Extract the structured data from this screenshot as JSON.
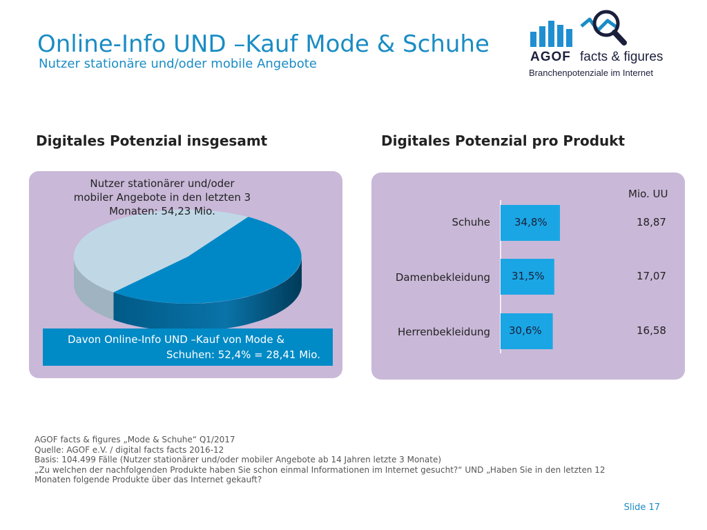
{
  "header": {
    "title": "Online-Info UND –Kauf Mode & Schuhe",
    "subtitle": "Nutzer stationäre und/oder mobile Angebote"
  },
  "logo": {
    "brand": "AGOF",
    "product": "facts & figures",
    "tagline": "Branchenpotenziale im Internet",
    "colors": {
      "bars": "#1f8fd1",
      "lens": "#1b1f3b",
      "line": "#1a8cc4"
    }
  },
  "left_panel": {
    "heading": "Digitales Potenzial insgesamt",
    "caption": "Nutzer stationärer und/oder mobiler Angebote in den letzten 3 Monaten: 54,23 Mio.",
    "callout_line1": "Davon Online-Info UND –Kauf von Mode &",
    "callout_line2": "Schuhen: 52,4% = 28,41 Mio."
  },
  "right_panel": {
    "heading": "Digitales Potenzial pro Produkt",
    "unit_label": "Mio. UU"
  },
  "chart_data": [
    {
      "type": "pie",
      "slices": [
        {
          "name": "",
          "value": 52.4,
          "color": "#0088c6"
        },
        {
          "name": "",
          "value": 47.6,
          "color": "#c0d8e6"
        }
      ]
    },
    {
      "type": "bar",
      "orientation": "horizontal",
      "categories": [
        "Schuhe",
        "Damenbekleidung",
        "Herrenbekleidung"
      ],
      "values": [
        34.8,
        31.5,
        30.6
      ],
      "value_labels": [
        "34,8%",
        "31,5%",
        "30,6%"
      ],
      "secondary_labels": [
        "18,87",
        "17,07",
        "16,58"
      ],
      "bar_color": "#1aa6e4",
      "xlim": [
        0,
        100
      ]
    }
  ],
  "footnote": {
    "line1": "AGOF facts & figures „Mode & Schuhe“ Q1/2017",
    "line2": "Quelle: AGOF e.V. / digital facts facts 2016-12",
    "line3": "Basis: 104.499 Fälle (Nutzer stationärer und/oder mobiler Angebote ab 14 Jahren letzte 3 Monate)",
    "line4": "„Zu welchen der nachfolgenden Produkte haben Sie schon einmal Informationen im Internet gesucht?“ UND „Haben Sie in den letzten 12",
    "line5": "Monaten folgende Produkte über das Internet gekauft?"
  },
  "slide_number": "Slide 17"
}
